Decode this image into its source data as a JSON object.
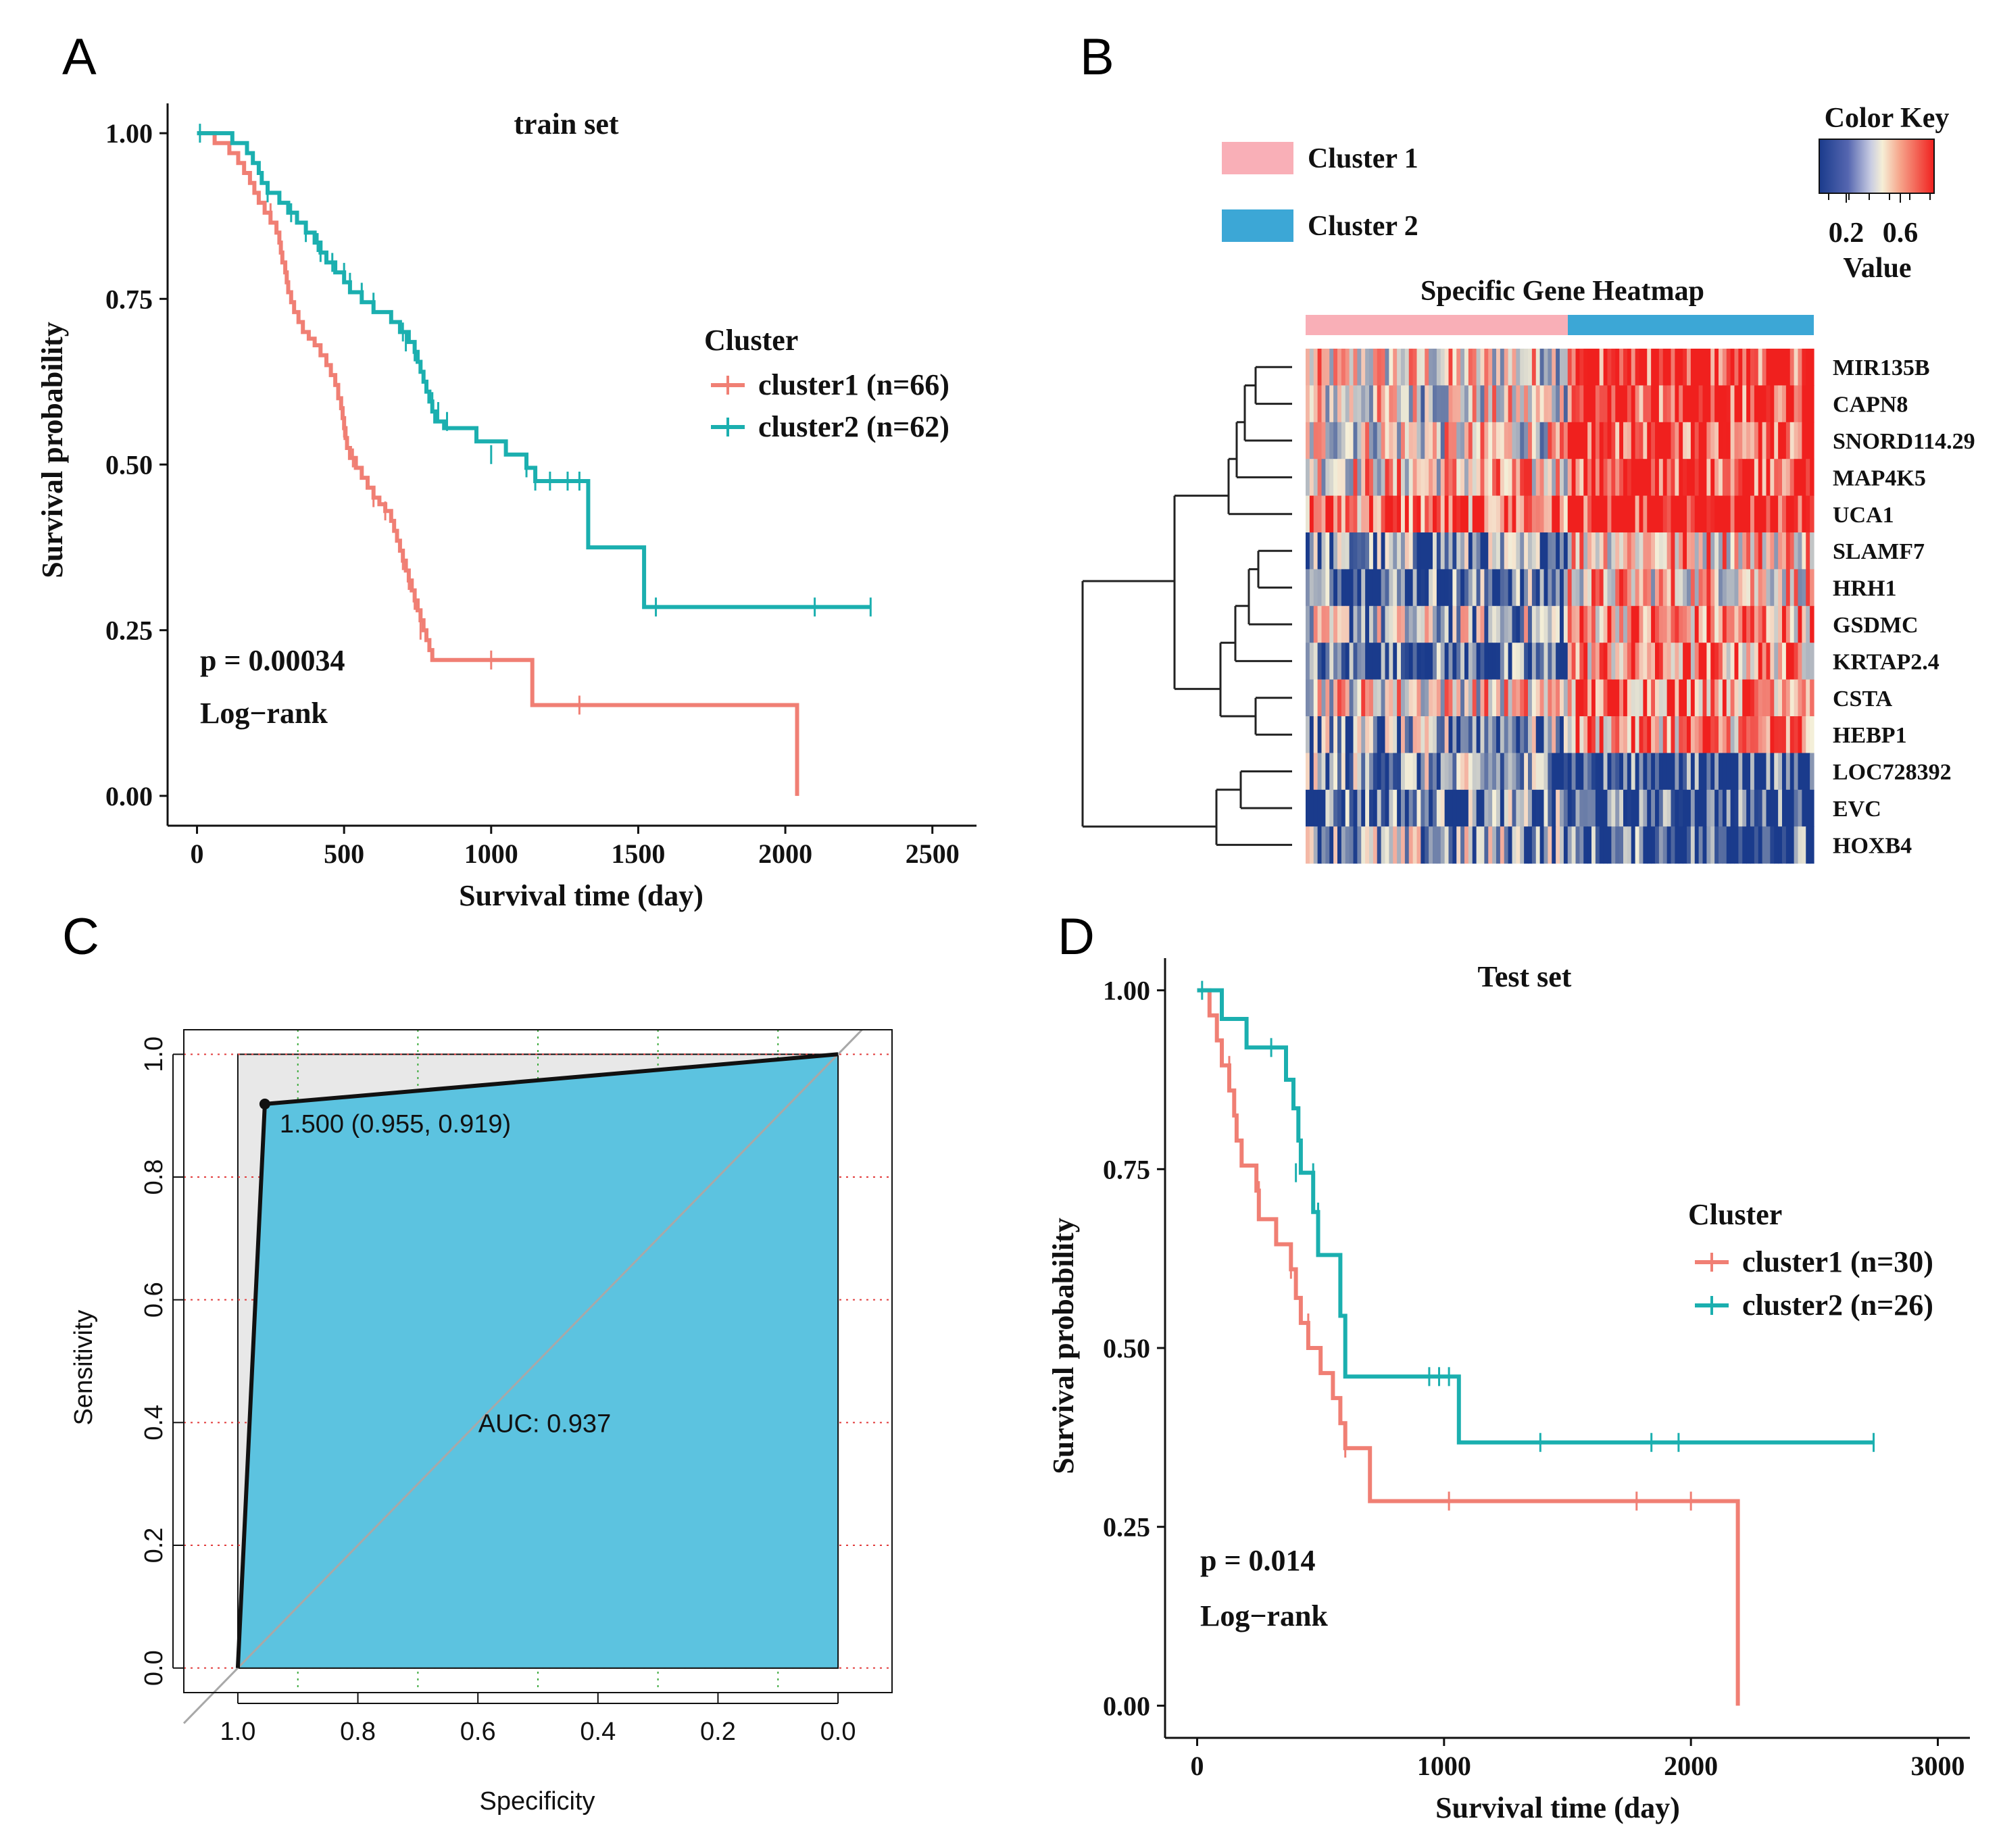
{
  "panels": {
    "A": "A",
    "B": "B",
    "C": "C",
    "D": "D"
  },
  "colors": {
    "cluster1": "#F07F74",
    "cluster2": "#1BAFAF",
    "roc_fill": "#5CC3E0",
    "roc_bg": "#E8E8E8",
    "hm_low": "#1A3B8C",
    "hm_mid": "#F5EFD8",
    "hm_high": "#F0201E",
    "pink": "#F9AFB7",
    "blue": "#3CA7D6"
  },
  "chart_data": [
    {
      "id": "A",
      "type": "line",
      "subtype": "kaplan-meier",
      "title": "train set",
      "xlabel": "Survival time (day)",
      "ylabel": "Survival probability",
      "xlim": [
        -100,
        2650
      ],
      "ylim": [
        -0.045,
        1.045
      ],
      "xticks": [
        0,
        500,
        1000,
        1500,
        2000,
        2500
      ],
      "xtick_labels": [
        "0",
        "500",
        "1000",
        "1500",
        "2000",
        "2500"
      ],
      "yticks": [
        0,
        0.25,
        0.5,
        0.75,
        1
      ],
      "ytick_labels": [
        "0.00",
        "0.25",
        "0.50",
        "0.75",
        "1.00"
      ],
      "legend_title": "Cluster",
      "pvalue": "p = 0.00034",
      "test": "Log−rank",
      "series": [
        {
          "name": "cluster1 (n=66)",
          "color_key": "cluster1",
          "steps": [
            [
              0,
              1.0
            ],
            [
              60,
              0.985
            ],
            [
              110,
              0.97
            ],
            [
              140,
              0.955
            ],
            [
              160,
              0.94
            ],
            [
              180,
              0.925
            ],
            [
              195,
              0.91
            ],
            [
              210,
              0.895
            ],
            [
              230,
              0.88
            ],
            [
              250,
              0.865
            ],
            [
              270,
              0.85
            ],
            [
              280,
              0.835
            ],
            [
              285,
              0.82
            ],
            [
              290,
              0.805
            ],
            [
              300,
              0.79
            ],
            [
              305,
              0.775
            ],
            [
              310,
              0.76
            ],
            [
              320,
              0.745
            ],
            [
              330,
              0.73
            ],
            [
              345,
              0.715
            ],
            [
              360,
              0.7
            ],
            [
              380,
              0.69
            ],
            [
              400,
              0.68
            ],
            [
              420,
              0.665
            ],
            [
              440,
              0.65
            ],
            [
              455,
              0.635
            ],
            [
              470,
              0.62
            ],
            [
              480,
              0.6
            ],
            [
              490,
              0.585
            ],
            [
              495,
              0.57
            ],
            [
              500,
              0.555
            ],
            [
              505,
              0.54
            ],
            [
              510,
              0.525
            ],
            [
              520,
              0.51
            ],
            [
              540,
              0.495
            ],
            [
              560,
              0.48
            ],
            [
              580,
              0.465
            ],
            [
              600,
              0.45
            ],
            [
              620,
              0.44
            ],
            [
              640,
              0.43
            ],
            [
              660,
              0.415
            ],
            [
              670,
              0.4
            ],
            [
              680,
              0.385
            ],
            [
              690,
              0.37
            ],
            [
              700,
              0.355
            ],
            [
              710,
              0.34
            ],
            [
              720,
              0.325
            ],
            [
              730,
              0.31
            ],
            [
              740,
              0.295
            ],
            [
              750,
              0.28
            ],
            [
              760,
              0.265
            ],
            [
              770,
              0.25
            ],
            [
              780,
              0.235
            ],
            [
              790,
              0.22
            ],
            [
              800,
              0.205
            ],
            [
              1140,
              0.137
            ],
            [
              2040,
              0.0
            ]
          ],
          "end_x": 2040,
          "censors": [
            [
              250,
              0.88
            ],
            [
              500,
              0.555
            ],
            [
              530,
              0.51
            ],
            [
              600,
              0.45
            ],
            [
              640,
              0.43
            ],
            [
              700,
              0.355
            ],
            [
              720,
              0.325
            ],
            [
              740,
              0.295
            ],
            [
              760,
              0.25
            ],
            [
              1000,
              0.205
            ],
            [
              1300,
              0.137
            ]
          ]
        },
        {
          "name": "cluster2 (n=62)",
          "color_key": "cluster2",
          "steps": [
            [
              0,
              1.0
            ],
            [
              120,
              0.985
            ],
            [
              170,
              0.97
            ],
            [
              190,
              0.955
            ],
            [
              210,
              0.94
            ],
            [
              220,
              0.925
            ],
            [
              240,
              0.91
            ],
            [
              280,
              0.895
            ],
            [
              310,
              0.88
            ],
            [
              340,
              0.865
            ],
            [
              370,
              0.85
            ],
            [
              400,
              0.835
            ],
            [
              420,
              0.82
            ],
            [
              440,
              0.805
            ],
            [
              470,
              0.79
            ],
            [
              500,
              0.775
            ],
            [
              520,
              0.76
            ],
            [
              560,
              0.745
            ],
            [
              600,
              0.73
            ],
            [
              660,
              0.715
            ],
            [
              690,
              0.7
            ],
            [
              720,
              0.685
            ],
            [
              740,
              0.67
            ],
            [
              750,
              0.655
            ],
            [
              760,
              0.64
            ],
            [
              770,
              0.625
            ],
            [
              780,
              0.61
            ],
            [
              790,
              0.595
            ],
            [
              800,
              0.58
            ],
            [
              810,
              0.565
            ],
            [
              840,
              0.555
            ],
            [
              950,
              0.535
            ],
            [
              1050,
              0.515
            ],
            [
              1120,
              0.495
            ],
            [
              1150,
              0.475
            ],
            [
              1330,
              0.375
            ],
            [
              1520,
              0.285
            ]
          ],
          "end_x": 2290,
          "censors": [
            [
              10,
              1.0
            ],
            [
              240,
              0.91
            ],
            [
              320,
              0.88
            ],
            [
              370,
              0.85
            ],
            [
              410,
              0.835
            ],
            [
              420,
              0.82
            ],
            [
              460,
              0.805
            ],
            [
              500,
              0.79
            ],
            [
              520,
              0.775
            ],
            [
              560,
              0.76
            ],
            [
              600,
              0.745
            ],
            [
              700,
              0.7
            ],
            [
              710,
              0.685
            ],
            [
              740,
              0.67
            ],
            [
              800,
              0.595
            ],
            [
              820,
              0.58
            ],
            [
              850,
              0.565
            ],
            [
              1000,
              0.515
            ],
            [
              1120,
              0.495
            ],
            [
              1150,
              0.475
            ],
            [
              1200,
              0.475
            ],
            [
              1260,
              0.475
            ],
            [
              1300,
              0.475
            ],
            [
              1560,
              0.285
            ],
            [
              2100,
              0.285
            ],
            [
              2290,
              0.285
            ]
          ]
        }
      ]
    },
    {
      "id": "B",
      "type": "heatmap",
      "title": "Specific Gene Heatmap",
      "color_key_title": "Color Key",
      "color_key_axis": "Value",
      "color_key_ticks": [
        0.2,
        0.6
      ],
      "color_key_tick_labels": [
        "0.2",
        "0.6"
      ],
      "color_key_range": [
        0.0,
        0.85
      ],
      "group_legend": [
        "Cluster 1",
        "Cluster 2"
      ],
      "group_split": 0.515,
      "rows": [
        "MIR135B",
        "CAPN8",
        "SNORD114.29",
        "MAP4K5",
        "UCA1",
        "SLAMF7",
        "HRH1",
        "GSDMC",
        "KRTAP2.4",
        "CSTA",
        "HEBP1",
        "LOC728392",
        "EVC",
        "HOXB4"
      ],
      "row_means": [
        [
          0.45,
          0.82
        ],
        [
          0.42,
          0.8
        ],
        [
          0.44,
          0.8
        ],
        [
          0.5,
          0.82
        ],
        [
          0.7,
          0.88
        ],
        [
          0.18,
          0.55
        ],
        [
          0.15,
          0.52
        ],
        [
          0.3,
          0.62
        ],
        [
          0.1,
          0.6
        ],
        [
          0.48,
          0.7
        ],
        [
          0.22,
          0.62
        ],
        [
          0.2,
          0.04
        ],
        [
          0.15,
          0.05
        ],
        [
          0.25,
          0.08
        ]
      ],
      "columns": 128
    },
    {
      "id": "C",
      "type": "line",
      "subtype": "roc",
      "xlabel": "Specificity",
      "ylabel": "Sensitivity",
      "xlim": [
        1.09,
        -0.09
      ],
      "ylim": [
        -0.04,
        1.04
      ],
      "xticks": [
        1.0,
        0.8,
        0.6,
        0.4,
        0.2,
        0.0
      ],
      "xtick_labels": [
        "1.0",
        "0.8",
        "0.6",
        "0.4",
        "0.2",
        "0.0"
      ],
      "yticks": [
        0.0,
        0.2,
        0.4,
        0.6,
        0.8,
        1.0
      ],
      "ytick_labels": [
        "0.0",
        "0.2",
        "0.4",
        "0.6",
        "0.8",
        "1.0"
      ],
      "roc_points": [
        [
          1.0,
          0.0
        ],
        [
          0.955,
          0.919
        ],
        [
          0.0,
          1.0
        ]
      ],
      "best_point": [
        0.955,
        0.919
      ],
      "best_label": "1.500 (0.955, 0.919)",
      "auc_label": "AUC: 0.937",
      "grid_v": [
        0.9,
        0.7,
        0.5,
        0.3,
        0.1
      ]
    },
    {
      "id": "D",
      "type": "line",
      "subtype": "kaplan-meier",
      "title": "Test set",
      "xlabel": "Survival time (day)",
      "ylabel": "Survival probability",
      "xlim": [
        -130,
        3130
      ],
      "ylim": [
        -0.045,
        1.045
      ],
      "xticks": [
        0,
        1000,
        2000,
        3000
      ],
      "xtick_labels": [
        "0",
        "1000",
        "2000",
        "3000"
      ],
      "yticks": [
        0,
        0.25,
        0.5,
        0.75,
        1
      ],
      "ytick_labels": [
        "0.00",
        "0.25",
        "0.50",
        "0.75",
        "1.00"
      ],
      "legend_title": "Cluster",
      "pvalue": "p = 0.014",
      "test": "Log−rank",
      "series": [
        {
          "name": "cluster1 (n=30)",
          "color_key": "cluster1",
          "steps": [
            [
              0,
              1.0
            ],
            [
              50,
              0.965
            ],
            [
              80,
              0.93
            ],
            [
              100,
              0.895
            ],
            [
              130,
              0.86
            ],
            [
              150,
              0.825
            ],
            [
              160,
              0.79
            ],
            [
              180,
              0.755
            ],
            [
              240,
              0.72
            ],
            [
              250,
              0.68
            ],
            [
              320,
              0.645
            ],
            [
              380,
              0.61
            ],
            [
              400,
              0.57
            ],
            [
              420,
              0.535
            ],
            [
              450,
              0.5
            ],
            [
              500,
              0.465
            ],
            [
              550,
              0.43
            ],
            [
              580,
              0.395
            ],
            [
              600,
              0.36
            ],
            [
              700,
              0.286
            ],
            [
              2190,
              0.0
            ]
          ],
          "end_x": 2190,
          "censors": [
            [
              130,
              0.895
            ],
            [
              250,
              0.72
            ],
            [
              380,
              0.61
            ],
            [
              450,
              0.535
            ],
            [
              600,
              0.36
            ],
            [
              1020,
              0.286
            ],
            [
              1780,
              0.286
            ],
            [
              2000,
              0.286
            ]
          ]
        },
        {
          "name": "cluster2 (n=26)",
          "color_key": "cluster2",
          "steps": [
            [
              0,
              1.0
            ],
            [
              100,
              0.96
            ],
            [
              200,
              0.92
            ],
            [
              360,
              0.875
            ],
            [
              390,
              0.835
            ],
            [
              410,
              0.79
            ],
            [
              420,
              0.745
            ],
            [
              470,
              0.69
            ],
            [
              490,
              0.63
            ],
            [
              580,
              0.545
            ],
            [
              600,
              0.46
            ],
            [
              1060,
              0.368
            ]
          ],
          "end_x": 2740,
          "censors": [
            [
              20,
              1.0
            ],
            [
              300,
              0.92
            ],
            [
              400,
              0.745
            ],
            [
              470,
              0.745
            ],
            [
              490,
              0.69
            ],
            [
              940,
              0.46
            ],
            [
              980,
              0.46
            ],
            [
              1020,
              0.46
            ],
            [
              1390,
              0.368
            ],
            [
              1840,
              0.368
            ],
            [
              1950,
              0.368
            ],
            [
              2740,
              0.368
            ]
          ]
        }
      ]
    }
  ]
}
